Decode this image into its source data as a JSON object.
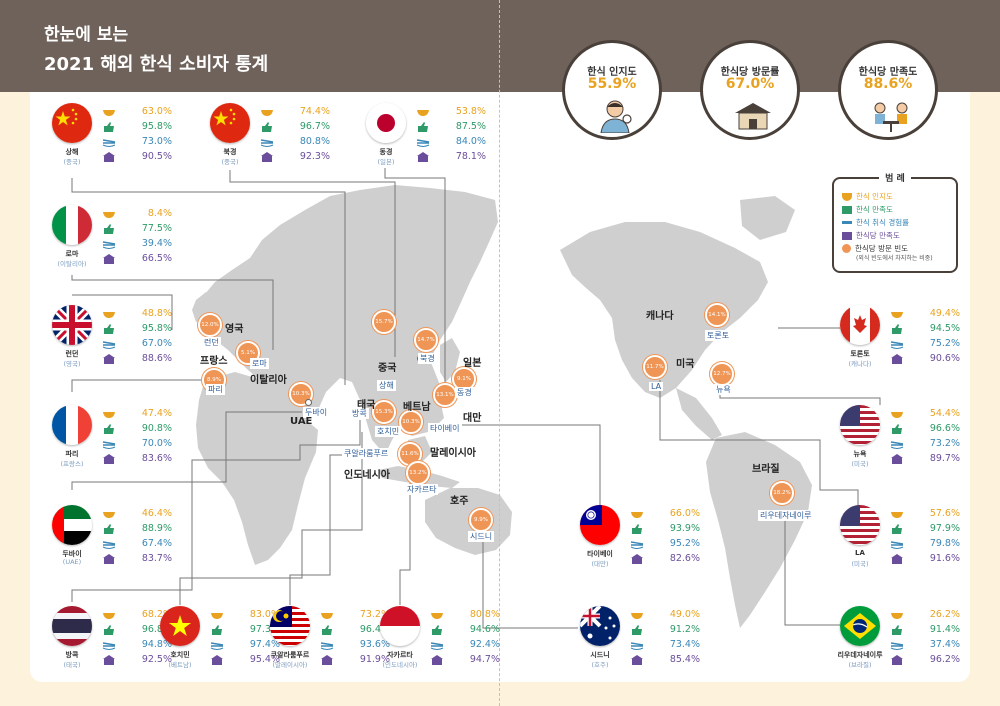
{
  "title": {
    "line1": "한눈에 보는",
    "line2": "2021 해외 한식 소비자 통계"
  },
  "summary": [
    {
      "label": "한식 인지도",
      "value": "55.9%"
    },
    {
      "label": "한식당 방문률",
      "value": "67.0%"
    },
    {
      "label": "한식당 만족도",
      "value": "88.6%"
    }
  ],
  "legend": {
    "title": "범 례",
    "items": [
      "한식 인지도",
      "한식 만족도",
      "한식 취식 경험률",
      "한식당 만족도",
      "한식당 방문 빈도"
    ],
    "note": "(외식 빈도에서 차지하는 비중)",
    "colors": [
      "#e9a21f",
      "#2d9a67",
      "#3a87b8",
      "#6b4e9b",
      "#ef9556"
    ]
  },
  "cities": [
    {
      "id": "shanghai",
      "name": "상해",
      "country": "(중국)",
      "flag": "china",
      "stats": [
        "63.0%",
        "95.8%",
        "73.0%",
        "90.5%"
      ]
    },
    {
      "id": "beijing",
      "name": "북경",
      "country": "(중국)",
      "flag": "china",
      "stats": [
        "74.4%",
        "96.7%",
        "80.8%",
        "92.3%"
      ]
    },
    {
      "id": "tokyo",
      "name": "동경",
      "country": "(일본)",
      "flag": "japan",
      "stats": [
        "53.8%",
        "87.5%",
        "84.0%",
        "78.1%"
      ]
    },
    {
      "id": "rome",
      "name": "로마",
      "country": "(이탈리아)",
      "flag": "italy",
      "stats": [
        "8.4%",
        "77.5%",
        "39.4%",
        "66.5%"
      ]
    },
    {
      "id": "london",
      "name": "런던",
      "country": "(영국)",
      "flag": "uk",
      "stats": [
        "48.8%",
        "95.8%",
        "67.0%",
        "88.6%"
      ]
    },
    {
      "id": "paris",
      "name": "파리",
      "country": "(프랑스)",
      "flag": "france",
      "stats": [
        "47.4%",
        "90.8%",
        "70.0%",
        "83.6%"
      ]
    },
    {
      "id": "dubai",
      "name": "두바이",
      "country": "(UAE)",
      "flag": "uae",
      "stats": [
        "46.4%",
        "88.9%",
        "67.4%",
        "83.7%"
      ]
    },
    {
      "id": "bangkok",
      "name": "방콕",
      "country": "(태국)",
      "flag": "thailand",
      "stats": [
        "68.2%",
        "96.8%",
        "94.8%",
        "92.5%"
      ]
    },
    {
      "id": "hochiminh",
      "name": "호치민",
      "country": "(베트남)",
      "flag": "vietnam",
      "stats": [
        "83.0%",
        "97.3%",
        "97.4%",
        "95.4%"
      ]
    },
    {
      "id": "kualalumpur",
      "name": "쿠알라룸푸르",
      "country": "(말레이시아)",
      "flag": "malaysia",
      "stats": [
        "73.2%",
        "96.4%",
        "93.6%",
        "91.9%"
      ]
    },
    {
      "id": "jakarta",
      "name": "자카르타",
      "country": "(인도네시아)",
      "flag": "indonesia",
      "stats": [
        "80.8%",
        "94.6%",
        "92.4%",
        "94.7%"
      ]
    },
    {
      "id": "taipei",
      "name": "타이베이",
      "country": "(대만)",
      "flag": "taiwan",
      "stats": [
        "66.0%",
        "93.9%",
        "95.2%",
        "82.6%"
      ]
    },
    {
      "id": "sydney",
      "name": "시드니",
      "country": "(호주)",
      "flag": "australia",
      "stats": [
        "49.0%",
        "91.2%",
        "73.4%",
        "85.4%"
      ]
    },
    {
      "id": "toronto",
      "name": "토론토",
      "country": "(캐나다)",
      "flag": "canada",
      "stats": [
        "49.4%",
        "94.5%",
        "75.2%",
        "90.6%"
      ]
    },
    {
      "id": "newyork",
      "name": "뉴욕",
      "country": "(미국)",
      "flag": "usa",
      "stats": [
        "54.4%",
        "96.6%",
        "73.2%",
        "89.7%"
      ]
    },
    {
      "id": "la",
      "name": "LA",
      "country": "(미국)",
      "flag": "usa",
      "stats": [
        "57.6%",
        "97.9%",
        "79.8%",
        "91.6%"
      ]
    },
    {
      "id": "rio",
      "name": "리우데자네이루",
      "country": "(브라질)",
      "flag": "brazil",
      "stats": [
        "26.2%",
        "91.4%",
        "37.4%",
        "96.2%"
      ]
    }
  ],
  "map_bubbles": [
    {
      "label": "12.0%"
    },
    {
      "label": "5.1%"
    },
    {
      "label": "8.9%"
    },
    {
      "label": "10.3%"
    },
    {
      "label": "14.7%"
    },
    {
      "label": "15.7%"
    },
    {
      "label": "9.1%"
    },
    {
      "label": "15.3%"
    },
    {
      "label": "13.1%"
    },
    {
      "label": "10.3%"
    },
    {
      "label": "11.6%"
    },
    {
      "label": "13.2%"
    },
    {
      "label": "9.9%"
    },
    {
      "label": "14.1%"
    },
    {
      "label": "11.7%"
    },
    {
      "label": "12.7%"
    },
    {
      "label": "18.2%"
    }
  ],
  "map_city_labels": [
    "런던",
    "로마",
    "파리",
    "두바이",
    "북경",
    "상해",
    "동경",
    "방콕",
    "호치민",
    "타이베이",
    "쿠알라룸푸르",
    "자카르타",
    "시드니",
    "토론토",
    "LA",
    "뉴욕",
    "리우데자네이루"
  ],
  "map_country_labels": [
    "영국",
    "프랑스",
    "이탈리아",
    "UAE",
    "중국",
    "일본",
    "태국",
    "베트남",
    "대만",
    "말레이시아",
    "인도네시아",
    "호주",
    "캐나다",
    "미국",
    "브라질"
  ]
}
